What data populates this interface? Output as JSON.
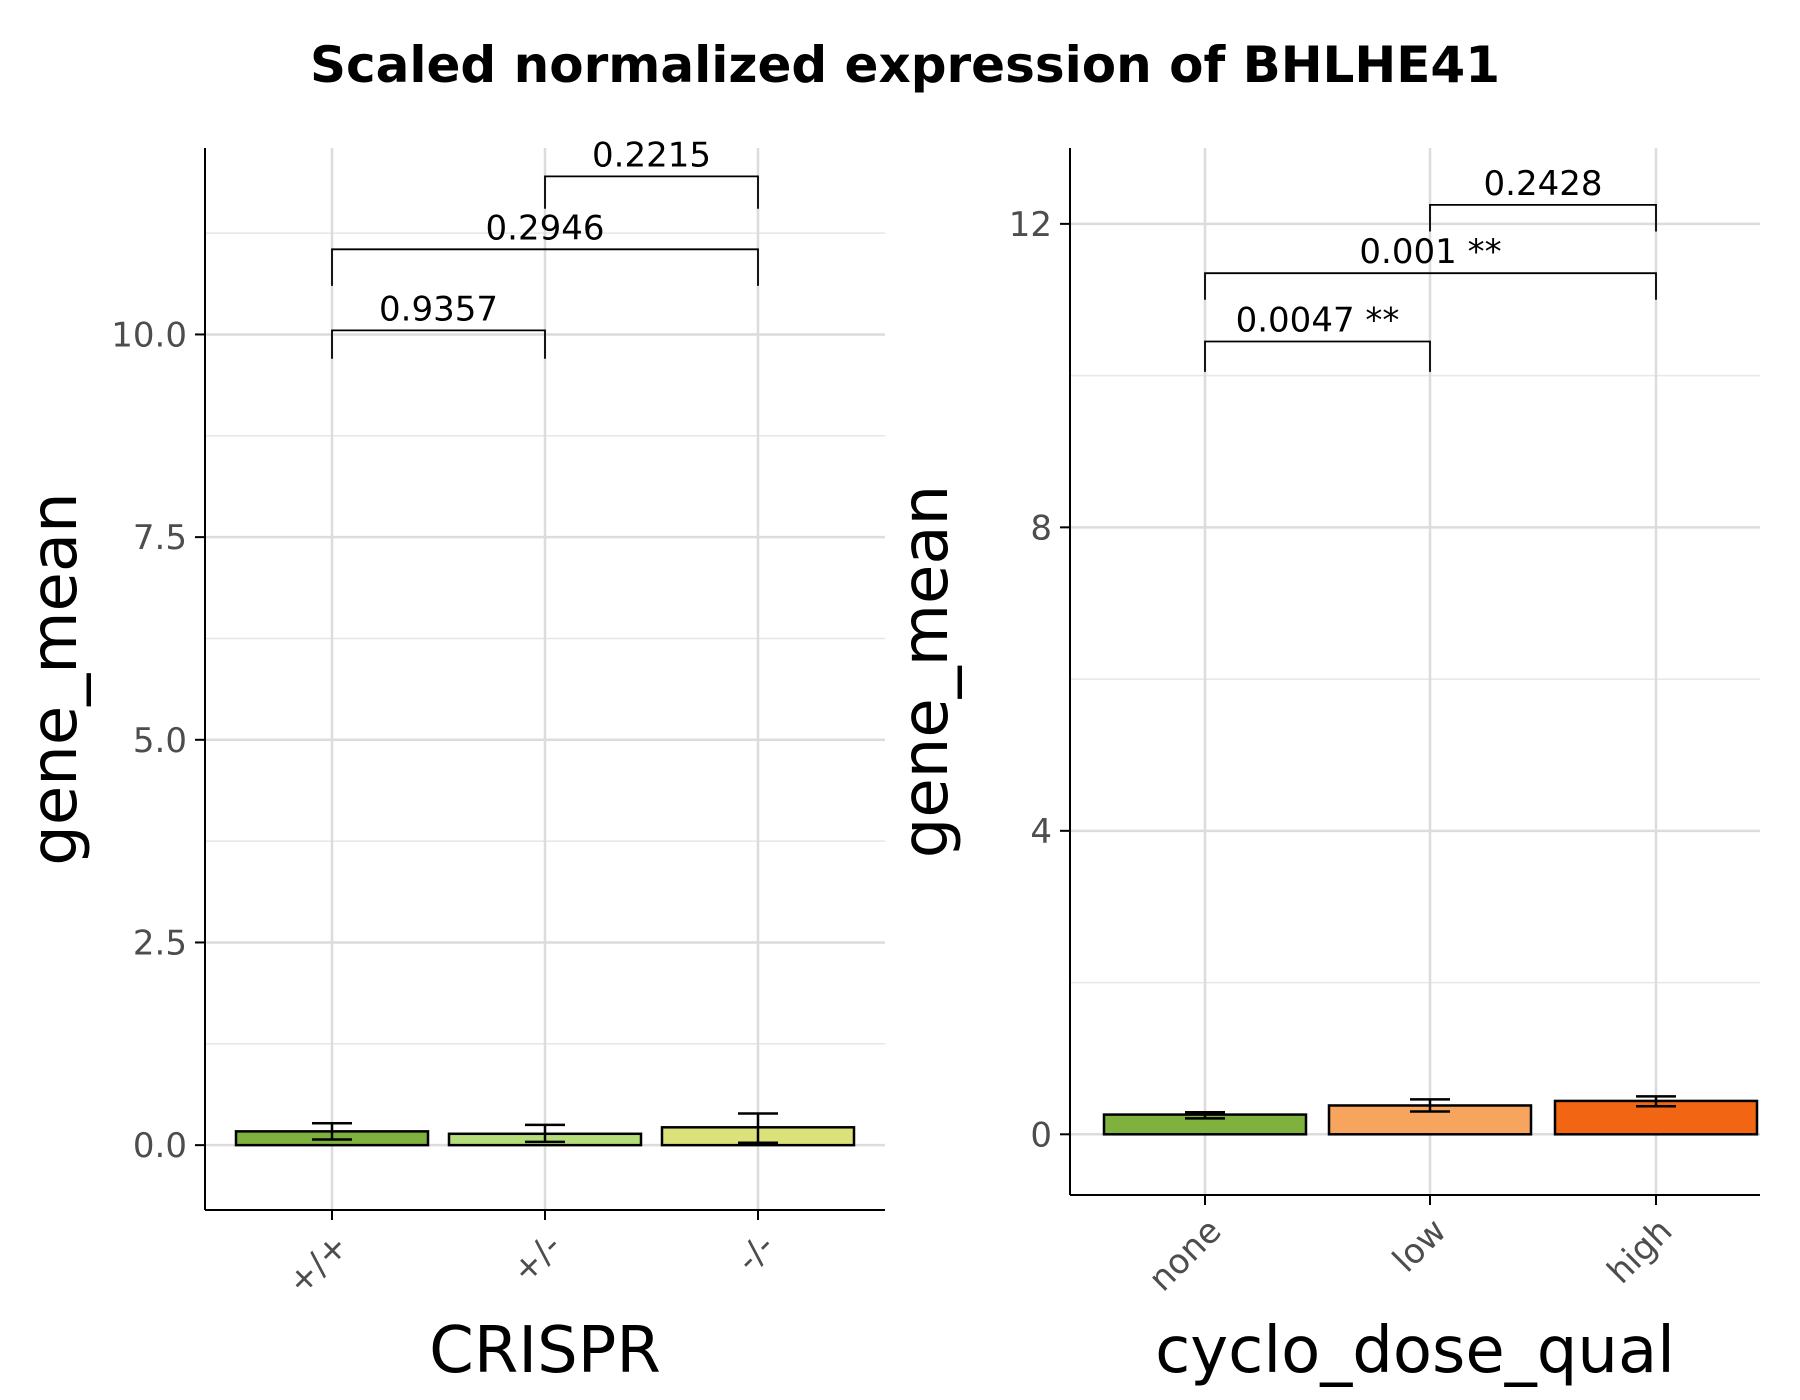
{
  "title": "Scaled normalized expression of BHLHE41",
  "chart_data": [
    {
      "type": "bar",
      "xlabel": "CRISPR",
      "ylabel": "gene_mean",
      "categories": [
        "+/+",
        "+/-",
        "-/-"
      ],
      "values": [
        0.17,
        0.14,
        0.22
      ],
      "error_low": [
        0.07,
        0.04,
        0.03
      ],
      "error_high": [
        0.27,
        0.25,
        0.39
      ],
      "colors": [
        "#7fb13e",
        "#b5dd7a",
        "#dce27a"
      ],
      "ylim": [
        -0.8,
        12.3
      ],
      "yticks": [
        0,
        2.5,
        5,
        7.5,
        10
      ],
      "ytick_labels": [
        "0.0",
        "2.5",
        "5.0",
        "7.5",
        "10.0"
      ],
      "grid": true,
      "comparisons": [
        {
          "from": 0,
          "to": 1,
          "label": "0.9357",
          "y": 10.05,
          "drop": 9.7
        },
        {
          "from": 0,
          "to": 2,
          "label": "0.2946",
          "y": 11.05,
          "drop": 10.6
        },
        {
          "from": 1,
          "to": 2,
          "label": "0.2215",
          "y": 11.95,
          "drop": 11.55
        }
      ]
    },
    {
      "type": "bar",
      "xlabel": "cyclo_dose_qual",
      "ylabel": "gene_mean",
      "categories": [
        "none",
        "low",
        "high"
      ],
      "values": [
        0.26,
        0.38,
        0.44
      ],
      "error_low": [
        0.21,
        0.3,
        0.37
      ],
      "error_high": [
        0.29,
        0.46,
        0.5
      ],
      "colors": [
        "#7fb13e",
        "#f6a45e",
        "#f26513"
      ],
      "ylim": [
        -0.8,
        13.0
      ],
      "yticks": [
        0,
        4,
        8,
        12
      ],
      "ytick_labels": [
        "0",
        "4",
        "8",
        "12"
      ],
      "grid": true,
      "comparisons": [
        {
          "from": 0,
          "to": 1,
          "label": "0.0047 **",
          "y": 10.45,
          "drop": 10.05
        },
        {
          "from": 0,
          "to": 2,
          "label": "0.001 **",
          "y": 11.35,
          "drop": 11.0
        },
        {
          "from": 1,
          "to": 2,
          "label": "0.2428",
          "y": 12.25,
          "drop": 11.9
        }
      ]
    }
  ]
}
